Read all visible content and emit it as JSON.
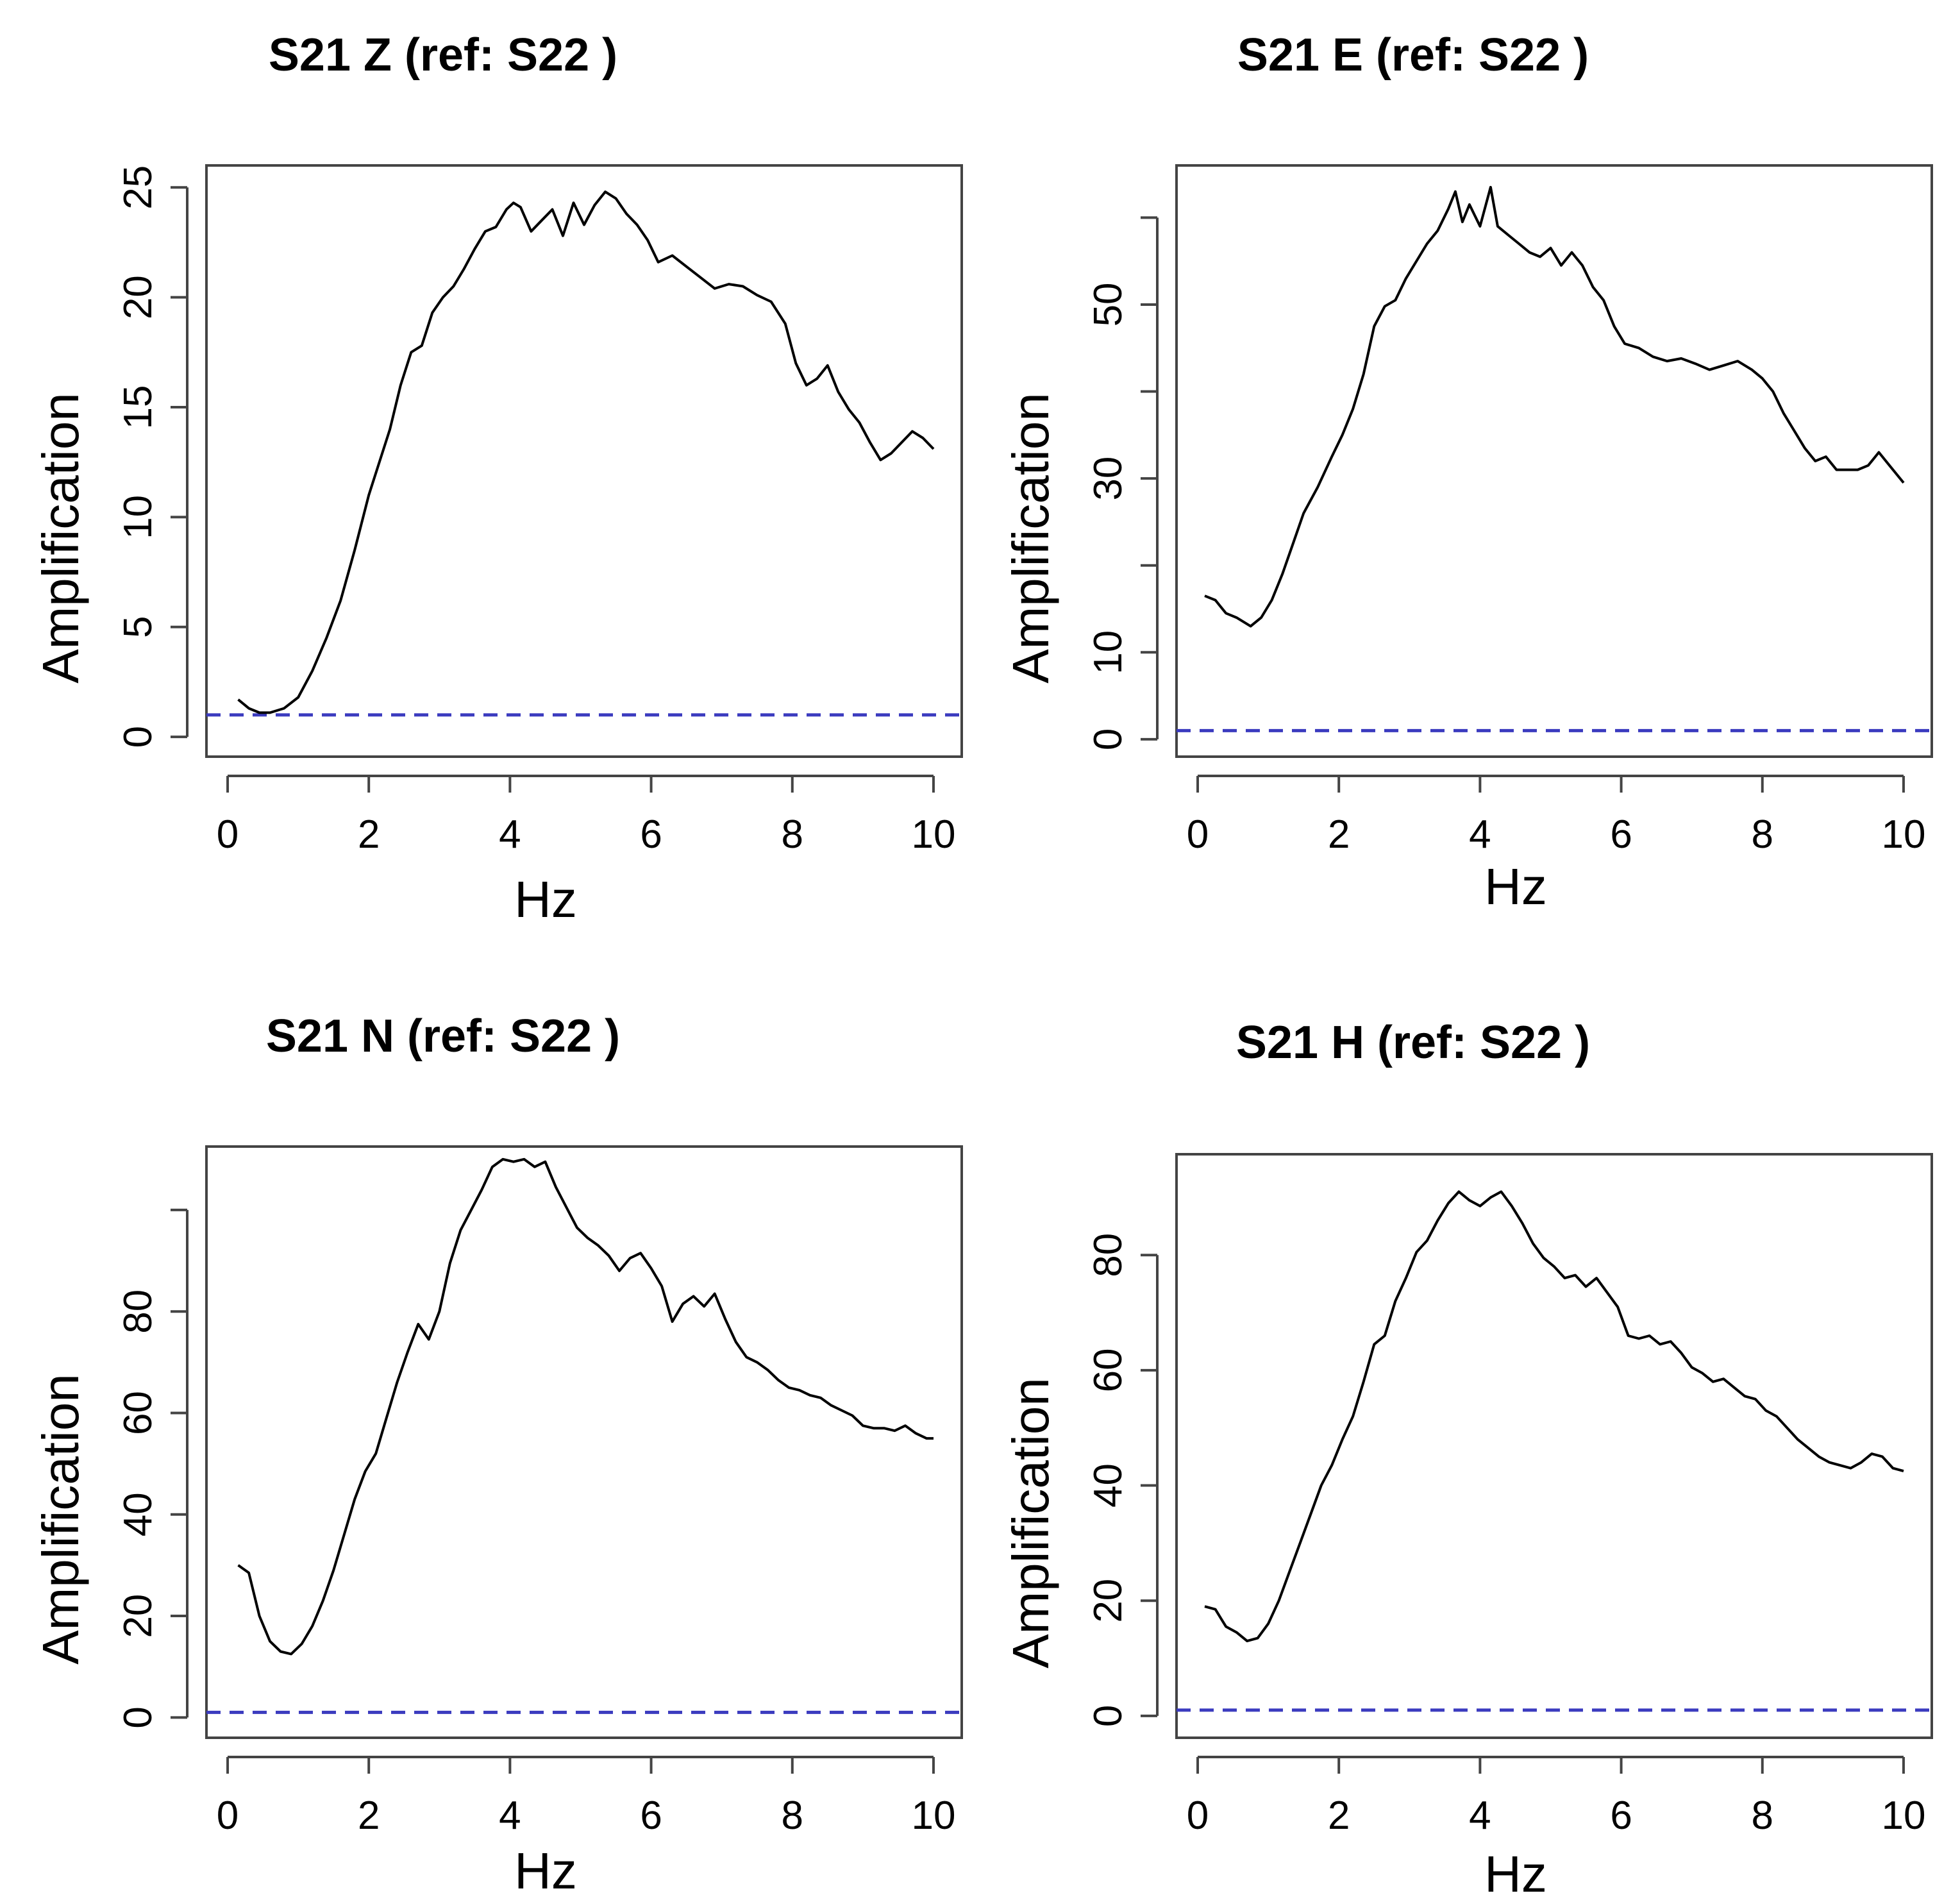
{
  "figure": {
    "colors": {
      "curve": "#000000",
      "reference": "#3b3bbf",
      "frame": "#444444",
      "background": "#ffffff"
    }
  },
  "chart_data": [
    {
      "type": "line",
      "title": "S21  Z  (ref:  S22 )",
      "xlabel": "Hz",
      "ylabel": "Amplification",
      "xlim": [
        -0.3,
        10.4
      ],
      "ylim": [
        -0.9,
        26.0
      ],
      "xticks": [
        0,
        2,
        4,
        6,
        8,
        10
      ],
      "yticks": [
        0,
        5,
        10,
        15,
        20,
        25
      ],
      "reference_line": 1,
      "series": [
        {
          "name": "S21 Z",
          "x": [
            0.15,
            0.3,
            0.45,
            0.6,
            0.8,
            1.0,
            1.2,
            1.4,
            1.6,
            1.8,
            2.0,
            2.15,
            2.3,
            2.45,
            2.6,
            2.75,
            2.9,
            3.05,
            3.2,
            3.35,
            3.5,
            3.65,
            3.8,
            3.95,
            4.05,
            4.15,
            4.3,
            4.45,
            4.6,
            4.75,
            4.9,
            5.05,
            5.2,
            5.35,
            5.5,
            5.65,
            5.8,
            5.95,
            6.1,
            6.3,
            6.5,
            6.7,
            6.9,
            7.1,
            7.3,
            7.5,
            7.7,
            7.9,
            8.05,
            8.2,
            8.35,
            8.5,
            8.65,
            8.8,
            8.95,
            9.1,
            9.25,
            9.4,
            9.55,
            9.7,
            9.85,
            10.0
          ],
          "y": [
            1.7,
            1.3,
            1.1,
            1.1,
            1.3,
            1.8,
            3.0,
            4.5,
            6.2,
            8.5,
            11.0,
            12.5,
            14.0,
            16.0,
            17.5,
            17.8,
            19.3,
            20.0,
            20.5,
            21.3,
            22.2,
            23.0,
            23.2,
            24.0,
            24.3,
            24.1,
            23.0,
            23.5,
            24.0,
            22.8,
            24.3,
            23.3,
            24.2,
            24.8,
            24.5,
            23.8,
            23.3,
            22.6,
            21.6,
            21.9,
            21.4,
            20.9,
            20.4,
            20.6,
            20.5,
            20.1,
            19.8,
            18.8,
            17.0,
            16.0,
            16.3,
            16.9,
            15.7,
            14.9,
            14.3,
            13.4,
            12.6,
            12.9,
            13.4,
            13.9,
            13.6,
            13.1
          ]
        }
      ]
    },
    {
      "type": "line",
      "title": "S21  E  (ref:  S22 )",
      "xlabel": "Hz",
      "ylabel": "Amplification",
      "xlim": [
        -0.3,
        10.4
      ],
      "ylim": [
        -2.0,
        66.0
      ],
      "xticks": [
        0,
        2,
        4,
        6,
        8,
        10
      ],
      "yticks": [
        0,
        10,
        20,
        30,
        40,
        50,
        60
      ],
      "ytick_labels": [
        "0",
        "10",
        "",
        "30",
        "",
        "50",
        ""
      ],
      "reference_line": 1,
      "series": [
        {
          "name": "S21 E",
          "x": [
            0.1,
            0.25,
            0.4,
            0.55,
            0.75,
            0.9,
            1.05,
            1.2,
            1.35,
            1.5,
            1.7,
            1.9,
            2.05,
            2.2,
            2.35,
            2.5,
            2.65,
            2.8,
            2.95,
            3.1,
            3.25,
            3.4,
            3.55,
            3.65,
            3.75,
            3.85,
            4.0,
            4.15,
            4.25,
            4.4,
            4.55,
            4.7,
            4.85,
            5.0,
            5.15,
            5.3,
            5.45,
            5.6,
            5.75,
            5.9,
            6.05,
            6.25,
            6.45,
            6.65,
            6.85,
            7.05,
            7.25,
            7.45,
            7.65,
            7.85,
            8.0,
            8.15,
            8.3,
            8.45,
            8.6,
            8.75,
            8.9,
            9.05,
            9.2,
            9.35,
            9.5,
            9.65,
            9.8,
            10.0
          ],
          "y": [
            16.5,
            16.0,
            14.5,
            14.0,
            13.0,
            14.0,
            16.0,
            19.0,
            22.5,
            26.0,
            29.0,
            32.5,
            35.0,
            38.0,
            42.0,
            47.5,
            49.8,
            50.5,
            53.0,
            55.0,
            57.0,
            58.5,
            61.0,
            63.0,
            59.5,
            61.5,
            59.0,
            63.5,
            59.0,
            58.0,
            57.0,
            56.0,
            55.5,
            56.5,
            54.5,
            56.0,
            54.5,
            52.0,
            50.5,
            47.5,
            45.5,
            45.0,
            44.0,
            43.5,
            43.8,
            43.2,
            42.5,
            43.0,
            43.5,
            42.5,
            41.5,
            40.0,
            37.5,
            35.5,
            33.5,
            32.0,
            32.5,
            31.0,
            31.0,
            31.0,
            31.5,
            33.0,
            31.5,
            29.5
          ]
        }
      ]
    },
    {
      "type": "line",
      "title": "S21  N  (ref:  S22 )",
      "xlabel": "Hz",
      "ylabel": "Amplification",
      "xlim": [
        -0.3,
        10.4
      ],
      "ylim": [
        -4.0,
        112.5
      ],
      "xticks": [
        0,
        2,
        4,
        6,
        8,
        10
      ],
      "yticks": [
        0,
        20,
        40,
        60,
        80,
        100
      ],
      "ytick_labels": [
        "0",
        "20",
        "40",
        "60",
        "80",
        ""
      ],
      "reference_line": 1,
      "series": [
        {
          "name": "S21 N",
          "x": [
            0.15,
            0.3,
            0.45,
            0.6,
            0.75,
            0.9,
            1.05,
            1.2,
            1.35,
            1.5,
            1.65,
            1.8,
            1.95,
            2.1,
            2.25,
            2.4,
            2.55,
            2.7,
            2.85,
            3.0,
            3.15,
            3.3,
            3.45,
            3.6,
            3.75,
            3.9,
            4.05,
            4.2,
            4.35,
            4.5,
            4.65,
            4.8,
            4.95,
            5.1,
            5.25,
            5.4,
            5.55,
            5.7,
            5.85,
            6.0,
            6.15,
            6.3,
            6.45,
            6.6,
            6.75,
            6.9,
            7.05,
            7.2,
            7.35,
            7.5,
            7.65,
            7.8,
            7.95,
            8.1,
            8.25,
            8.4,
            8.55,
            8.7,
            8.85,
            9.0,
            9.15,
            9.3,
            9.45,
            9.6,
            9.75,
            9.9,
            10.0
          ],
          "y": [
            30.0,
            28.5,
            20.0,
            15.0,
            13.0,
            12.5,
            14.5,
            18.0,
            23.0,
            29.0,
            36.0,
            43.0,
            48.5,
            52.0,
            59.0,
            66.0,
            72.0,
            77.5,
            74.5,
            80.0,
            89.5,
            96.0,
            100.0,
            104.0,
            108.5,
            110.0,
            109.5,
            110.0,
            108.5,
            109.5,
            104.5,
            100.5,
            96.5,
            94.5,
            93.0,
            91.0,
            88.0,
            90.5,
            91.5,
            88.5,
            85.0,
            78.0,
            81.5,
            83.0,
            81.0,
            83.5,
            78.5,
            74.0,
            71.0,
            70.0,
            68.5,
            66.5,
            65.0,
            64.5,
            63.5,
            63.0,
            61.5,
            60.5,
            59.5,
            57.5,
            57.0,
            57.0,
            56.5,
            57.5,
            56.0,
            55.0,
            55.0
          ]
        }
      ]
    },
    {
      "type": "line",
      "title": "S21  H  (ref:  S22 )",
      "xlabel": "Hz",
      "ylabel": "Amplification",
      "xlim": [
        -0.3,
        10.4
      ],
      "ylim": [
        -3.8,
        97.5
      ],
      "xticks": [
        0,
        2,
        4,
        6,
        8,
        10
      ],
      "yticks": [
        0,
        20,
        40,
        60,
        80
      ],
      "reference_line": 1,
      "series": [
        {
          "name": "S21 H",
          "x": [
            0.1,
            0.25,
            0.4,
            0.55,
            0.7,
            0.85,
            1.0,
            1.15,
            1.3,
            1.45,
            1.6,
            1.75,
            1.9,
            2.05,
            2.2,
            2.35,
            2.5,
            2.65,
            2.8,
            2.95,
            3.1,
            3.25,
            3.4,
            3.55,
            3.7,
            3.85,
            4.0,
            4.15,
            4.3,
            4.45,
            4.6,
            4.75,
            4.9,
            5.05,
            5.2,
            5.35,
            5.5,
            5.65,
            5.8,
            5.95,
            6.1,
            6.25,
            6.4,
            6.55,
            6.7,
            6.85,
            7.0,
            7.15,
            7.3,
            7.45,
            7.6,
            7.75,
            7.9,
            8.05,
            8.2,
            8.35,
            8.5,
            8.65,
            8.8,
            8.95,
            9.1,
            9.25,
            9.4,
            9.55,
            9.7,
            9.85,
            10.0
          ],
          "y": [
            19.0,
            18.5,
            15.5,
            14.5,
            13.0,
            13.5,
            16.0,
            20.0,
            25.0,
            30.0,
            35.0,
            40.0,
            43.5,
            48.0,
            52.0,
            58.0,
            64.5,
            66.0,
            72.0,
            76.0,
            80.5,
            82.5,
            86.0,
            89.0,
            91.0,
            89.5,
            88.5,
            90.0,
            91.0,
            88.5,
            85.5,
            82.0,
            79.5,
            78.0,
            76.0,
            76.5,
            74.5,
            76.0,
            73.5,
            71.0,
            66.0,
            65.5,
            66.0,
            64.5,
            65.0,
            63.0,
            60.5,
            59.5,
            58.0,
            58.5,
            57.0,
            55.5,
            55.0,
            53.0,
            52.0,
            50.0,
            48.0,
            46.5,
            45.0,
            44.0,
            43.5,
            43.0,
            44.0,
            45.5,
            45.0,
            43.0,
            42.5
          ]
        }
      ]
    }
  ]
}
